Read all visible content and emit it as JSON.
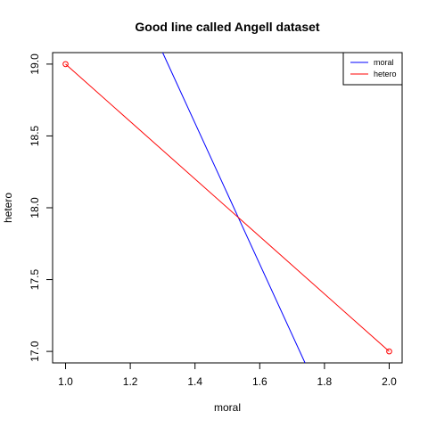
{
  "chart_data": {
    "type": "line",
    "title": "Good line called Angell dataset",
    "xlabel": "moral",
    "ylabel": "hetero",
    "xlim": [
      0.96,
      2.04
    ],
    "ylim": [
      16.92,
      19.08
    ],
    "x_ticks": [
      1.0,
      1.2,
      1.4,
      1.6,
      1.8,
      2.0
    ],
    "x_tick_labels": [
      "1.0",
      "1.2",
      "1.4",
      "1.6",
      "1.8",
      "2.0"
    ],
    "y_ticks": [
      17.0,
      17.5,
      18.0,
      18.5,
      19.0
    ],
    "y_tick_labels": [
      "17.0",
      "17.5",
      "18.0",
      "18.5",
      "19.0"
    ],
    "legend_position": "top-right",
    "grid": false,
    "series": [
      {
        "name": "moral",
        "color": "#0000ff",
        "x": [
          1.3,
          1.74
        ],
        "y": [
          19.08,
          16.92
        ],
        "markers": false
      },
      {
        "name": "hetero",
        "color": "#ff0000",
        "x": [
          1.0,
          2.0
        ],
        "y": [
          19.0,
          17.0
        ],
        "markers": true
      }
    ]
  }
}
